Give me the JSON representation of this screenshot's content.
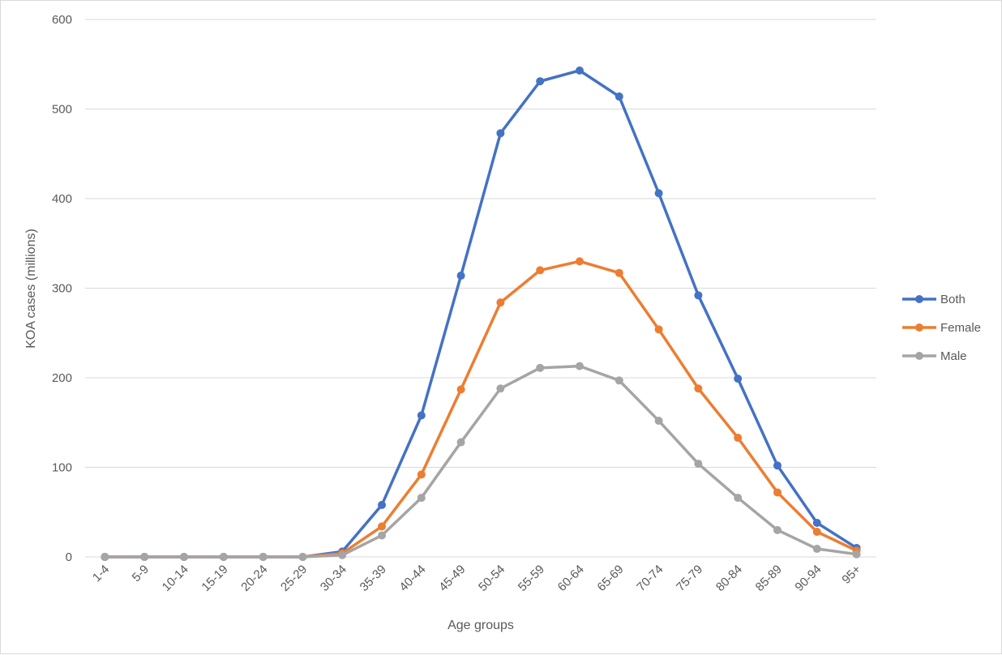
{
  "chart_data": {
    "type": "line",
    "title": "",
    "xlabel": "Age groups",
    "ylabel": "KOA cases (millions)",
    "ylim": [
      0,
      600
    ],
    "yticks": [
      0,
      100,
      200,
      300,
      400,
      500,
      600
    ],
    "grid": "horizontal",
    "legend_position": "right",
    "categories": [
      "1-4",
      "5-9",
      "10-14",
      "15-19",
      "20-24",
      "25-29",
      "30-34",
      "35-39",
      "40-44",
      "45-49",
      "50-54",
      "55-59",
      "60-64",
      "65-69",
      "70-74",
      "75-79",
      "80-84",
      "85-89",
      "90-94",
      "95+"
    ],
    "series": [
      {
        "name": "Both",
        "color": "#4472c4",
        "values": [
          0,
          0,
          0,
          0,
          0,
          0,
          6,
          58,
          158,
          314,
          473,
          531,
          543,
          514,
          406,
          292,
          199,
          102,
          38,
          10
        ]
      },
      {
        "name": "Female",
        "color": "#ed7d31",
        "values": [
          0,
          0,
          0,
          0,
          0,
          0,
          4,
          34,
          92,
          187,
          284,
          320,
          330,
          317,
          254,
          188,
          133,
          72,
          28,
          7
        ]
      },
      {
        "name": "Male",
        "color": "#a5a5a5",
        "values": [
          0,
          0,
          0,
          0,
          0,
          0,
          2,
          24,
          66,
          128,
          188,
          211,
          213,
          197,
          152,
          104,
          66,
          30,
          9,
          3
        ]
      }
    ]
  }
}
